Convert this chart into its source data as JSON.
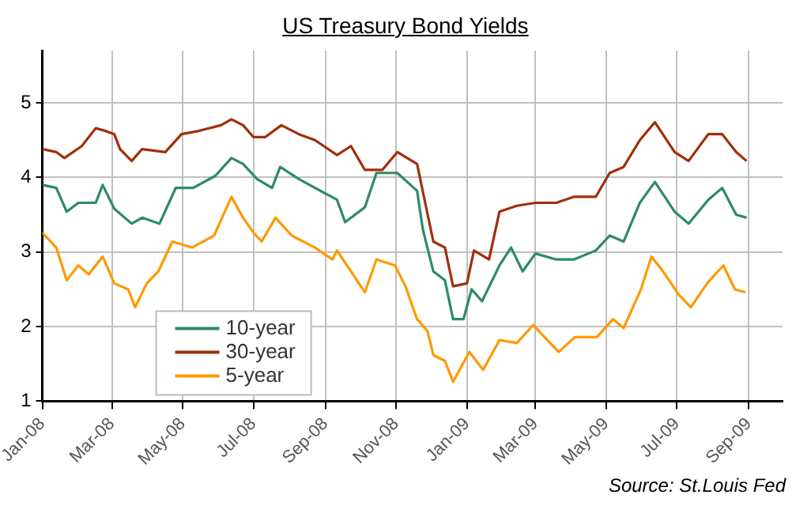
{
  "chart_data": {
    "type": "line",
    "title": "US Treasury Bond Yields",
    "annotations": [
      "Source: St.Louis Fed"
    ],
    "xlim": [
      "2008-01-01",
      "2009-09-30"
    ],
    "ylim": [
      1,
      5.7
    ],
    "yticks": [
      1,
      2,
      3,
      4,
      5
    ],
    "xticks": [
      {
        "value": "2008-01-01",
        "label": "Jan-08"
      },
      {
        "value": "2008-03-01",
        "label": "Mar-08"
      },
      {
        "value": "2008-05-01",
        "label": "May-08"
      },
      {
        "value": "2008-07-01",
        "label": "Jul-08"
      },
      {
        "value": "2008-09-01",
        "label": "Sep-08"
      },
      {
        "value": "2008-11-01",
        "label": "Nov-08"
      },
      {
        "value": "2009-01-01",
        "label": "Jan-09"
      },
      {
        "value": "2009-03-01",
        "label": "Mar-09"
      },
      {
        "value": "2009-05-01",
        "label": "May-09"
      },
      {
        "value": "2009-07-01",
        "label": "Jul-09"
      },
      {
        "value": "2009-09-01",
        "label": "Sep-09"
      }
    ],
    "grid": true,
    "legend": "bottom left",
    "marker": "none",
    "line_style": "solid",
    "series": [
      {
        "name": "10-year",
        "color": "#2e8b64",
        "x": [
          "2008-01-01",
          "2008-01-13",
          "2008-01-22",
          "2008-02-01",
          "2008-02-16",
          "2008-02-22",
          "2008-03-03",
          "2008-03-18",
          "2008-03-27",
          "2008-04-11",
          "2008-04-25",
          "2008-05-10",
          "2008-05-29",
          "2008-06-12",
          "2008-06-22",
          "2008-07-04",
          "2008-07-17",
          "2008-07-24",
          "2008-08-09",
          "2008-08-23",
          "2008-09-11",
          "2008-09-18",
          "2008-10-05",
          "2008-10-15",
          "2008-11-02",
          "2008-11-19",
          "2008-11-24",
          "2008-12-03",
          "2008-12-13",
          "2008-12-20",
          "2008-12-29",
          "2009-01-05",
          "2009-01-14",
          "2009-01-29",
          "2009-02-08",
          "2009-02-18",
          "2009-03-01",
          "2009-03-19",
          "2009-04-03",
          "2009-04-22",
          "2009-05-04",
          "2009-05-16",
          "2009-05-30",
          "2009-06-12",
          "2009-06-29",
          "2009-07-11",
          "2009-07-28",
          "2009-08-09",
          "2009-08-21",
          "2009-08-30"
        ],
        "values": [
          3.9,
          3.86,
          3.54,
          3.66,
          3.66,
          3.9,
          3.58,
          3.38,
          3.46,
          3.38,
          3.86,
          3.86,
          4.02,
          4.26,
          4.18,
          3.98,
          3.86,
          4.14,
          3.98,
          3.86,
          3.7,
          3.4,
          3.6,
          4.06,
          4.06,
          3.82,
          3.3,
          2.74,
          2.62,
          2.1,
          2.1,
          2.5,
          2.34,
          2.82,
          3.06,
          2.74,
          2.98,
          2.9,
          2.9,
          3.02,
          3.22,
          3.14,
          3.66,
          3.94,
          3.54,
          3.38,
          3.7,
          3.86,
          3.5,
          3.46
        ]
      },
      {
        "name": "30-year",
        "color": "#a0300a",
        "x": [
          "2008-01-01",
          "2008-01-13",
          "2008-01-20",
          "2008-02-04",
          "2008-02-16",
          "2008-02-25",
          "2008-03-03",
          "2008-03-08",
          "2008-03-18",
          "2008-03-27",
          "2008-04-16",
          "2008-04-30",
          "2008-05-14",
          "2008-06-03",
          "2008-06-12",
          "2008-06-22",
          "2008-07-01",
          "2008-07-11",
          "2008-07-25",
          "2008-08-09",
          "2008-08-23",
          "2008-09-11",
          "2008-09-23",
          "2008-10-05",
          "2008-10-20",
          "2008-11-02",
          "2008-11-19",
          "2008-11-26",
          "2008-12-03",
          "2008-12-13",
          "2008-12-20",
          "2009-01-01",
          "2009-01-07",
          "2009-01-20",
          "2009-01-29",
          "2009-02-13",
          "2009-03-01",
          "2009-03-19",
          "2009-04-03",
          "2009-04-22",
          "2009-05-04",
          "2009-05-16",
          "2009-05-30",
          "2009-06-12",
          "2009-06-29",
          "2009-07-11",
          "2009-07-28",
          "2009-08-09",
          "2009-08-21",
          "2009-08-30"
        ],
        "values": [
          4.38,
          4.34,
          4.26,
          4.42,
          4.66,
          4.62,
          4.58,
          4.38,
          4.22,
          4.38,
          4.34,
          4.58,
          4.62,
          4.7,
          4.78,
          4.7,
          4.54,
          4.54,
          4.7,
          4.58,
          4.5,
          4.3,
          4.42,
          4.1,
          4.1,
          4.34,
          4.18,
          3.66,
          3.14,
          3.06,
          2.54,
          2.58,
          3.02,
          2.9,
          3.54,
          3.62,
          3.66,
          3.66,
          3.74,
          3.74,
          4.06,
          4.14,
          4.5,
          4.74,
          4.34,
          4.22,
          4.58,
          4.58,
          4.34,
          4.22
        ]
      },
      {
        "name": "5-year",
        "color": "#ff9900",
        "x": [
          "2008-01-01",
          "2008-01-13",
          "2008-01-22",
          "2008-02-01",
          "2008-02-10",
          "2008-02-22",
          "2008-03-03",
          "2008-03-15",
          "2008-03-21",
          "2008-03-31",
          "2008-04-10",
          "2008-04-22",
          "2008-05-09",
          "2008-05-28",
          "2008-06-12",
          "2008-06-22",
          "2008-07-01",
          "2008-07-08",
          "2008-07-20",
          "2008-08-03",
          "2008-08-23",
          "2008-09-07",
          "2008-09-11",
          "2008-10-05",
          "2008-10-15",
          "2008-10-31",
          "2008-11-09",
          "2008-11-19",
          "2008-11-28",
          "2008-12-03",
          "2008-12-13",
          "2008-12-20",
          "2008-12-27",
          "2009-01-03",
          "2009-01-15",
          "2009-01-29",
          "2009-02-13",
          "2009-02-27",
          "2009-03-21",
          "2009-04-04",
          "2009-04-23",
          "2009-05-07",
          "2009-05-16",
          "2009-05-31",
          "2009-06-09",
          "2009-06-19",
          "2009-07-03",
          "2009-07-13",
          "2009-07-27",
          "2009-08-10",
          "2009-08-20",
          "2009-08-29"
        ],
        "values": [
          3.26,
          3.06,
          2.62,
          2.82,
          2.7,
          2.94,
          2.58,
          2.5,
          2.26,
          2.58,
          2.74,
          3.14,
          3.06,
          3.22,
          3.74,
          3.46,
          3.26,
          3.14,
          3.46,
          3.22,
          3.06,
          2.9,
          3.02,
          2.46,
          2.9,
          2.82,
          2.54,
          2.1,
          1.94,
          1.62,
          1.54,
          1.26,
          1.46,
          1.66,
          1.42,
          1.82,
          1.78,
          2.02,
          1.66,
          1.86,
          1.86,
          2.1,
          1.98,
          2.5,
          2.94,
          2.74,
          2.42,
          2.26,
          2.58,
          2.82,
          2.5,
          2.46
        ]
      }
    ]
  }
}
